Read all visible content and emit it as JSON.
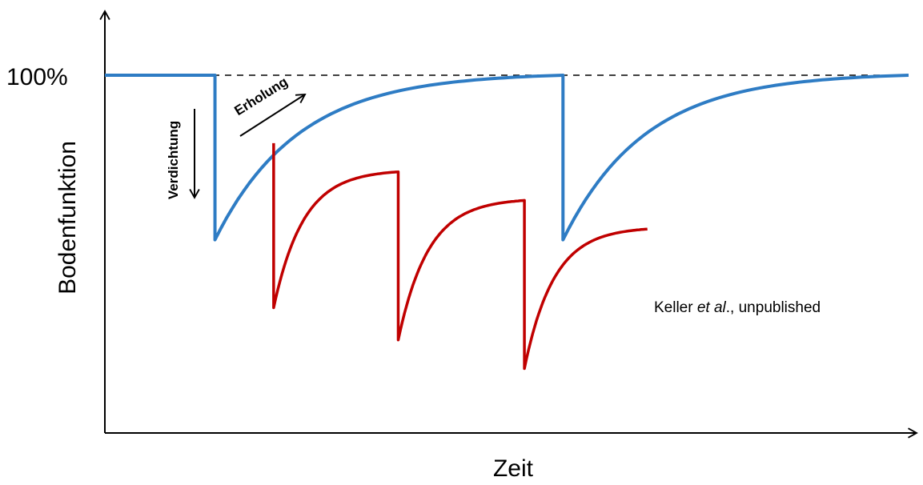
{
  "chart_data": {
    "type": "line",
    "xlabel": "Zeit",
    "ylabel": "Bodenfunktion",
    "xlim": [
      0,
      1
    ],
    "ylim": [
      0,
      1.2
    ],
    "reference_line": {
      "y": 1.0,
      "label": "100%",
      "style": "dashed"
    },
    "series": [
      {
        "color": "#2e7cc4",
        "segments": [
          {
            "kind": "flat",
            "x0": 0.0,
            "x1": 0.137,
            "y": 1.0
          },
          {
            "kind": "drop",
            "x": 0.137,
            "y_from": 1.0,
            "y_to": 0.54
          },
          {
            "kind": "recover",
            "x0": 0.137,
            "x1": 0.57,
            "y_start": 0.54,
            "y_end": 1.0
          },
          {
            "kind": "drop",
            "x": 0.57,
            "y_from": 1.0,
            "y_to": 0.54
          },
          {
            "kind": "recover",
            "x0": 0.57,
            "x1": 1.0,
            "y_start": 0.54,
            "y_end": 1.0
          }
        ]
      },
      {
        "color": "#c00000",
        "segments": [
          {
            "kind": "drop",
            "x": 0.21,
            "y_from": 0.81,
            "y_to": 0.35
          },
          {
            "kind": "recover",
            "x0": 0.21,
            "x1": 0.365,
            "y_start": 0.35,
            "y_end": 0.73
          },
          {
            "kind": "drop",
            "x": 0.365,
            "y_from": 0.73,
            "y_to": 0.26
          },
          {
            "kind": "recover",
            "x0": 0.365,
            "x1": 0.522,
            "y_start": 0.26,
            "y_end": 0.65
          },
          {
            "kind": "drop",
            "x": 0.522,
            "y_from": 0.65,
            "y_to": 0.18
          },
          {
            "kind": "recover",
            "x0": 0.522,
            "x1": 0.675,
            "y_start": 0.18,
            "y_end": 0.57
          }
        ]
      }
    ],
    "annotations": [
      {
        "text": "Verdichtung",
        "arrow": "down"
      },
      {
        "text": "Erholung",
        "arrow": "up-right"
      },
      {
        "text_prefix": "Keller ",
        "text_italic": "et al",
        "text_suffix": "., unpublished"
      }
    ]
  }
}
